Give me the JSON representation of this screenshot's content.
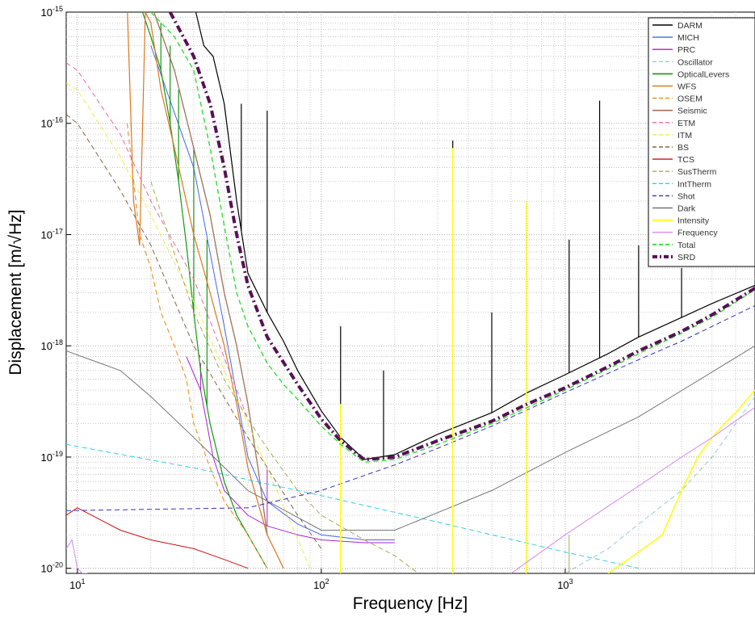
{
  "chart_data": {
    "type": "line",
    "xlabel": "Frequency [Hz]",
    "ylabel": "Displacement [m/√Hz]",
    "xscale": "log",
    "yscale": "log",
    "xlim": [
      9,
      6000
    ],
    "ylim": [
      9e-21,
      1e-15
    ],
    "grid": "major and minor, dotted",
    "legend_position": "top-right",
    "x_tick_labels": [
      {
        "value": 10,
        "base": "10",
        "exp": "1"
      },
      {
        "value": 100,
        "base": "10",
        "exp": "2"
      },
      {
        "value": 1000,
        "base": "10",
        "exp": "3"
      }
    ],
    "y_tick_labels": [
      {
        "value": 1e-15,
        "base": "10",
        "exp": "-15"
      },
      {
        "value": 1e-16,
        "base": "10",
        "exp": "-16"
      },
      {
        "value": 1e-17,
        "base": "10",
        "exp": "-17"
      },
      {
        "value": 1e-18,
        "base": "10",
        "exp": "-18"
      },
      {
        "value": 1e-19,
        "base": "10",
        "exp": "-19"
      },
      {
        "value": 1e-20,
        "base": "10",
        "exp": "-20"
      }
    ],
    "series": [
      {
        "name": "DARM",
        "color": "#000000",
        "dash": "solid",
        "width": 1.2,
        "x": [
          30,
          33,
          36,
          40,
          45,
          50,
          60,
          70,
          80,
          100,
          120,
          150,
          200,
          300,
          500,
          700,
          1000,
          1500,
          2000,
          3000,
          4000,
          6000
        ],
        "y": [
          1.2e-15,
          5e-16,
          4e-16,
          1.5e-16,
          2e-17,
          4.5e-18,
          2e-18,
          1.1e-18,
          6e-19,
          2.6e-19,
          1.5e-19,
          9.5e-20,
          1.05e-19,
          1.6e-19,
          2.5e-19,
          3.8e-19,
          5.5e-19,
          8.5e-19,
          1.2e-18,
          1.8e-18,
          2.4e-18,
          3.5e-18
        ],
        "peaks": [
          {
            "x": 47,
            "y": 1.5e-16
          },
          {
            "x": 60,
            "y": 1.3e-16
          },
          {
            "x": 120,
            "y": 1.5e-18
          },
          {
            "x": 180,
            "y": 6e-19
          },
          {
            "x": 346,
            "y": 7e-17
          },
          {
            "x": 500,
            "y": 2e-18
          },
          {
            "x": 692,
            "y": 1.8e-17
          },
          {
            "x": 1038,
            "y": 9e-18
          },
          {
            "x": 1384,
            "y": 1.6e-16
          },
          {
            "x": 2000,
            "y": 8e-18
          },
          {
            "x": 3000,
            "y": 5e-18
          }
        ]
      },
      {
        "name": "MICH",
        "color": "#4466ee",
        "dash": "solid",
        "width": 1,
        "x": [
          20,
          30,
          40,
          50,
          60,
          80,
          100,
          150,
          200
        ],
        "y": [
          5e-16,
          4e-17,
          1.5e-18,
          1e-19,
          4e-20,
          2.5e-20,
          2e-20,
          1.8e-20,
          1.8e-20
        ]
      },
      {
        "name": "PRC",
        "color": "#aa22cc",
        "dash": "solid",
        "width": 1,
        "x": [
          28,
          32,
          36,
          40,
          50,
          60,
          80,
          100,
          150,
          200
        ],
        "y": [
          8e-19,
          4e-19,
          1e-19,
          5e-20,
          3e-20,
          2.4e-20,
          2e-20,
          1.8e-20,
          1.7e-20,
          1.7e-20
        ],
        "peaks": [
          {
            "x": 32,
            "y": 7e-19
          },
          {
            "x": 60,
            "y": 8e-20
          }
        ]
      },
      {
        "name": "Oscillator",
        "color": "#99cccc",
        "dash": "dashed",
        "width": 1,
        "x": [
          1000,
          1500,
          2000,
          3000,
          4000,
          5000,
          6000
        ],
        "y": [
          9e-21,
          1.5e-20,
          2.5e-20,
          5e-20,
          1e-19,
          2e-19,
          3.5e-19
        ]
      },
      {
        "name": "OpticalLevers",
        "color": "#119911",
        "dash": "solid",
        "width": 1.2,
        "x": [
          18,
          20,
          22,
          24,
          26,
          28,
          30,
          32,
          35,
          40,
          45,
          50,
          60
        ],
        "y": [
          1.2e-15,
          6e-16,
          3e-16,
          1e-16,
          3e-17,
          8e-18,
          2e-18,
          6e-19,
          2e-19,
          6e-20,
          3e-20,
          2e-20,
          1e-20
        ],
        "peaks": [
          {
            "x": 22,
            "y": 8e-16
          },
          {
            "x": 24,
            "y": 5e-16
          },
          {
            "x": 26,
            "y": 2e-16
          },
          {
            "x": 30,
            "y": 6e-17
          },
          {
            "x": 34,
            "y": 9e-18
          }
        ]
      },
      {
        "name": "WFS",
        "color": "#dd7722",
        "dash": "solid",
        "width": 1.2,
        "x": [
          16,
          17,
          18,
          19,
          20,
          22,
          25,
          30,
          35,
          40,
          45,
          50,
          60,
          70
        ],
        "y": [
          1.2e-15,
          2e-17,
          8e-18,
          1e-15,
          8e-16,
          2e-16,
          6e-17,
          1e-17,
          3e-18,
          1e-18,
          3e-19,
          8e-20,
          2e-20,
          1e-20
        ]
      },
      {
        "name": "OSEM",
        "color": "#ee9933",
        "dash": "dashed",
        "width": 1.2,
        "x": [
          16,
          18,
          20,
          22,
          25,
          28,
          30,
          35,
          40,
          50,
          60
        ],
        "y": [
          1e-16,
          1e-17,
          5e-18,
          2e-18,
          1e-18,
          5e-19,
          2e-19,
          8e-20,
          4e-20,
          2e-20,
          1e-20
        ]
      },
      {
        "name": "Seismic",
        "color": "#a0705a",
        "dash": "solid",
        "width": 1.3,
        "x": [
          20,
          25,
          30,
          35,
          40,
          45,
          50,
          55,
          60
        ],
        "y": [
          1.2e-15,
          3e-16,
          6e-17,
          1.5e-17,
          3e-18,
          1e-18,
          3e-19,
          8e-20,
          2e-20
        ]
      },
      {
        "name": "ETM",
        "color": "#ee66aa",
        "dash": "dashed",
        "width": 1,
        "x": [
          9,
          10,
          15,
          20,
          30,
          50
        ],
        "y": [
          3.5e-16,
          3e-16,
          8e-17,
          2e-17,
          4e-18,
          2.2e-19
        ]
      },
      {
        "name": "ITM",
        "color": "#eeee44",
        "dash": "dashed",
        "width": 1,
        "x": [
          9,
          10,
          15,
          20,
          30,
          50,
          90
        ],
        "y": [
          2.3e-16,
          2e-16,
          5e-17,
          1.5e-17,
          2.5e-18,
          2e-19,
          1e-20
        ]
      },
      {
        "name": "BS",
        "color": "#886644",
        "dash": "dashed",
        "width": 1,
        "x": [
          9,
          10,
          15,
          20,
          30,
          50,
          80,
          100
        ],
        "y": [
          1.2e-16,
          1e-16,
          2.5e-17,
          8e-18,
          1e-18,
          1.5e-19,
          3e-20,
          1.5e-20
        ]
      },
      {
        "name": "TCS",
        "color": "#cc1111",
        "dash": "solid",
        "width": 1,
        "x": [
          9,
          10,
          15,
          20,
          30,
          40,
          50
        ],
        "y": [
          3e-20,
          3.5e-20,
          2.2e-20,
          1.8e-20,
          1.5e-20,
          1.2e-20,
          1e-20
        ]
      },
      {
        "name": "SusTherm",
        "color": "#aaaa55",
        "dash": "dashed",
        "width": 1,
        "x": [
          20,
          30,
          40,
          50,
          60,
          80,
          100,
          150,
          200,
          250
        ],
        "y": [
          3e-17,
          2e-18,
          5e-19,
          2.2e-19,
          1.2e-19,
          5e-20,
          3e-20,
          1.8e-20,
          1.3e-20,
          9e-21
        ],
        "peaks": [
          {
            "x": 346,
            "y": 1.8e-19
          },
          {
            "x": 692,
            "y": 5e-20
          },
          {
            "x": 1038,
            "y": 2e-20
          }
        ]
      },
      {
        "name": "IntTherm",
        "color": "#33ccee",
        "dash": "dashed",
        "width": 1,
        "x": [
          9,
          30,
          100,
          300,
          1000,
          2000
        ],
        "y": [
          1.3e-19,
          8e-20,
          4.5e-20,
          2.6e-20,
          1.4e-20,
          1e-20
        ]
      },
      {
        "name": "Shot",
        "color": "#3333bb",
        "dash": "dashed",
        "width": 1,
        "x": [
          9,
          50,
          100,
          200,
          300,
          500,
          1000,
          2000,
          3000,
          6000
        ],
        "y": [
          3.3e-20,
          3.5e-20,
          5e-20,
          8.5e-20,
          1.2e-19,
          1.9e-19,
          3.8e-19,
          7.5e-19,
          1.1e-18,
          2.3e-18
        ]
      },
      {
        "name": "Dark",
        "color": "#777777",
        "dash": "solid",
        "width": 1,
        "x": [
          9,
          15,
          20,
          30,
          50,
          100,
          200,
          500,
          1000,
          2000,
          6000
        ],
        "y": [
          9e-19,
          6e-19,
          3.5e-19,
          1.5e-19,
          5e-20,
          2.2e-20,
          2.2e-20,
          5e-20,
          1.1e-19,
          2.3e-19,
          1e-18
        ]
      },
      {
        "name": "Intensity",
        "color": "#ffff11",
        "dash": "solid",
        "width": 1.6,
        "x": [
          1500,
          2000,
          2500,
          3000,
          3500,
          4000,
          4500,
          5000,
          6000
        ],
        "y": [
          9e-21,
          1.4e-20,
          2e-20,
          5e-20,
          1e-19,
          1.5e-19,
          2e-19,
          2.5e-19,
          4e-19
        ],
        "peaks": [
          {
            "x": 346,
            "y": 6e-17
          },
          {
            "x": 692,
            "y": 2e-17
          },
          {
            "x": 120,
            "y": 3e-19
          }
        ]
      },
      {
        "name": "Frequency",
        "color": "#dd99ee",
        "dash": "solid",
        "width": 1.2,
        "x": [
          9,
          9.5,
          10,
          10.5,
          11
        ],
        "y": [
          1.5e-20,
          1.8e-20,
          1e-20,
          9e-21,
          9e-21
        ],
        "x2": [
          600,
          1000,
          2000,
          3000,
          4000,
          6000
        ],
        "y2": [
          9e-21,
          2e-20,
          5.5e-20,
          1e-19,
          1.5e-19,
          2.8e-19
        ]
      },
      {
        "name": "Total",
        "color": "#33dd33",
        "dash": "dashed",
        "width": 1.4,
        "x": [
          20,
          25,
          30,
          35,
          40,
          45,
          50,
          60,
          70,
          80,
          100,
          120,
          150,
          200,
          300,
          500,
          700,
          1000,
          1500,
          2000,
          3000,
          4000,
          6000
        ],
        "y": [
          1e-15,
          6e-16,
          3e-16,
          6e-17,
          1.2e-17,
          3e-18,
          1.5e-18,
          7e-19,
          4.5e-19,
          3.3e-19,
          1.9e-19,
          1.3e-19,
          9e-20,
          9.5e-20,
          1.3e-19,
          2e-19,
          2.8e-19,
          4e-19,
          6.2e-19,
          8.5e-19,
          1.3e-18,
          1.8e-18,
          3.2e-18
        ]
      },
      {
        "name": "SRD",
        "color": "#551155",
        "dash": "dash-dot",
        "width": 4,
        "x": [
          24,
          30,
          35,
          40,
          45,
          50,
          60,
          80,
          100,
          120,
          150,
          200,
          300,
          500,
          700,
          1000,
          1500,
          2000,
          3000,
          4000,
          6000
        ],
        "y": [
          1e-15,
          4e-16,
          1.5e-16,
          4e-17,
          1e-17,
          3.5e-18,
          1.2e-18,
          4.5e-19,
          2.2e-19,
          1.4e-19,
          9.5e-20,
          1e-19,
          1.4e-19,
          2.1e-19,
          3e-19,
          4.2e-19,
          6.5e-19,
          9e-19,
          1.35e-18,
          1.9e-18,
          3.3e-18
        ]
      }
    ]
  }
}
